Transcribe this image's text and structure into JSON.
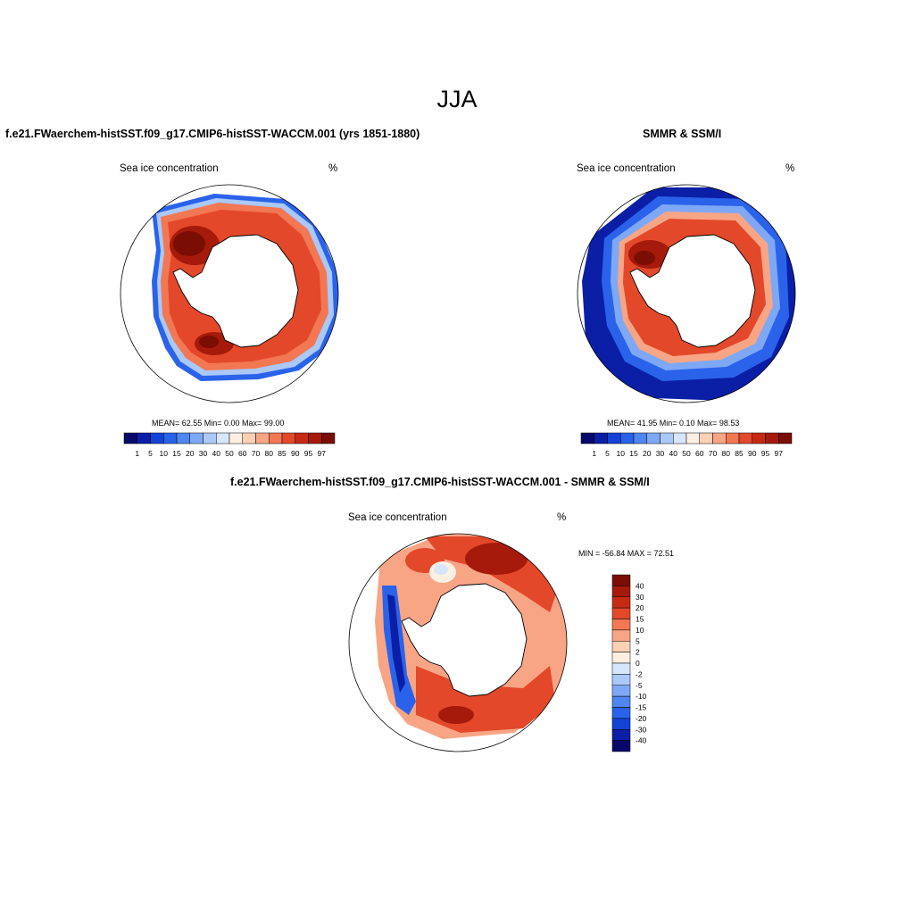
{
  "figure": {
    "title": "JJA"
  },
  "panels": {
    "model": {
      "title": "f.e21.FWaerchem-histSST.f09_g17.CMIP6-histSST-WACCM.001 (yrs 1851-1880)",
      "left_label": "Sea ice concentration",
      "right_label": "%",
      "stats": "MEAN=  62.55  Min=   0.00  Max=  99.00"
    },
    "obs": {
      "title": "SMMR & SSM/I",
      "left_label": "Sea ice concentration",
      "right_label": "%",
      "stats": "MEAN=  41.95  Min=   0.10  Max=  98.53"
    },
    "diff": {
      "title": "f.e21.FWaerchem-histSST.f09_g17.CMIP6-histSST-WACCM.001 - SMMR & SSM/I",
      "left_label": "Sea ice concentration",
      "right_label": "%",
      "stats": "MIN = -56.84 MAX =  72.51"
    }
  },
  "colorbars": {
    "concentration": {
      "labels": [
        "1",
        "5",
        "10",
        "15",
        "20",
        "30",
        "40",
        "50",
        "60",
        "70",
        "80",
        "85",
        "90",
        "95",
        "97"
      ],
      "colors": [
        "#08086b",
        "#0a1fa6",
        "#1242d6",
        "#2a63ea",
        "#4f86f0",
        "#7ea8f5",
        "#aac8f8",
        "#d6e6fb",
        "#fdf0e2",
        "#fbd0b5",
        "#f8a585",
        "#f27753",
        "#e3482a",
        "#c72a14",
        "#a51a0a",
        "#7a0d04"
      ]
    },
    "difference": {
      "labels": [
        "40",
        "30",
        "20",
        "15",
        "10",
        "5",
        "2",
        "0",
        "-2",
        "-5",
        "-10",
        "-15",
        "-20",
        "-30",
        "-40"
      ],
      "colors": [
        "#7a0d04",
        "#a51a0a",
        "#c72a14",
        "#e3482a",
        "#f27753",
        "#f8a585",
        "#fbd0b5",
        "#fdf0e2",
        "#d6e6fb",
        "#aac8f8",
        "#7ea8f5",
        "#4f86f0",
        "#2a63ea",
        "#1242d6",
        "#0a1fa6",
        "#08086b"
      ]
    }
  }
}
